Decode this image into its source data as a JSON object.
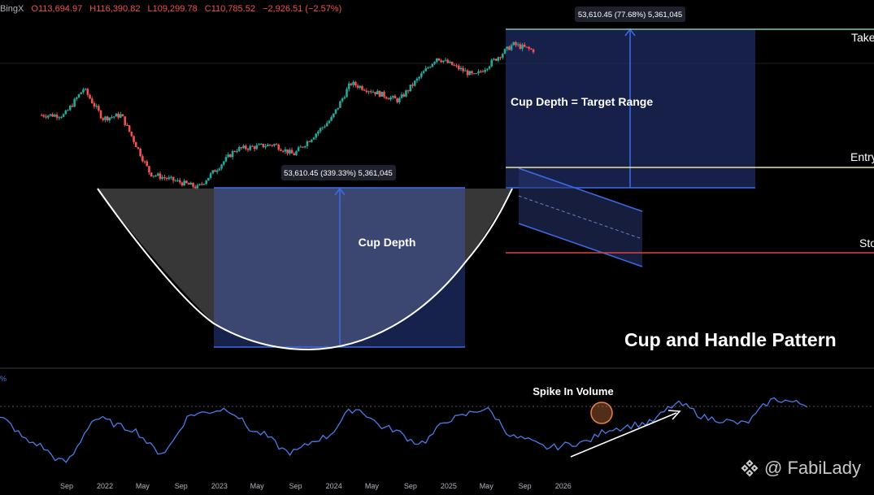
{
  "header": {
    "exchange": "BingX",
    "open": "O113,694.97",
    "high": "H116,390.82",
    "low": "L109,299.78",
    "close": "C110,785.52",
    "change": "−2,926.51 (−2.57%)"
  },
  "price_pane": {
    "cup_measure_label": "53,610.45 (339.33%) 5,361,045",
    "target_measure_label": "53,610.45 (77.68%) 5,361,045",
    "cup_depth_label": "Cup Depth",
    "target_range_label": "Cup Depth = Target Range",
    "pattern_title": "Cup and Handle Pattern",
    "take_label": "Take",
    "entry_label": "Entry",
    "stop_label": "Sto"
  },
  "indicator_pane": {
    "scale_label": "%",
    "annotation": "Spike In Volume"
  },
  "watermark": {
    "text": "@ FabiLady"
  },
  "colors": {
    "background": "#000000",
    "bull_candle": "#26a69a",
    "bear_candle": "#ef5350",
    "measure_blue": "#3d6be8",
    "take_line": "#7ec8b8",
    "entry_line": "#e8e6a0",
    "stop_line": "#e04040",
    "oscillator_line": "#4a7be8"
  },
  "chart_data": [
    {
      "type": "candlestick",
      "title": "",
      "x_ticks": [
        "Sep",
        "2022",
        "May",
        "Sep",
        "2023",
        "May",
        "Sep",
        "2024",
        "May",
        "Sep",
        "2025",
        "May",
        "Sep",
        "2026"
      ],
      "approx_path": [
        {
          "date": "2021-09",
          "price": 45000
        },
        {
          "date": "2021-11",
          "price": 65000
        },
        {
          "date": "2022-01",
          "price": 43000
        },
        {
          "date": "2022-03",
          "price": 45000
        },
        {
          "date": "2022-06",
          "price": 20000
        },
        {
          "date": "2022-11",
          "price": 16500
        },
        {
          "date": "2023-03",
          "price": 28000
        },
        {
          "date": "2023-07",
          "price": 30000
        },
        {
          "date": "2023-09",
          "price": 26000
        },
        {
          "date": "2024-01",
          "price": 43000
        },
        {
          "date": "2024-03",
          "price": 70000
        },
        {
          "date": "2024-08",
          "price": 55000
        },
        {
          "date": "2024-12",
          "price": 100000
        },
        {
          "date": "2025-04",
          "price": 77000
        },
        {
          "date": "2025-08",
          "price": 120000
        },
        {
          "date": "2025-10",
          "price": 110785
        }
      ],
      "annotations": {
        "cup_depth": {
          "value": 53610.45,
          "percent": 339.33
        },
        "target_range": {
          "value": 53610.45,
          "percent": 77.68
        }
      }
    },
    {
      "type": "line",
      "title": "",
      "series_description": "oscillator",
      "approx_values": [
        55,
        30,
        10,
        55,
        45,
        20,
        60,
        65,
        40,
        20,
        35,
        65,
        45,
        30,
        55,
        65,
        35,
        25,
        30,
        45,
        50,
        70,
        55,
        50,
        75,
        70
      ]
    }
  ]
}
